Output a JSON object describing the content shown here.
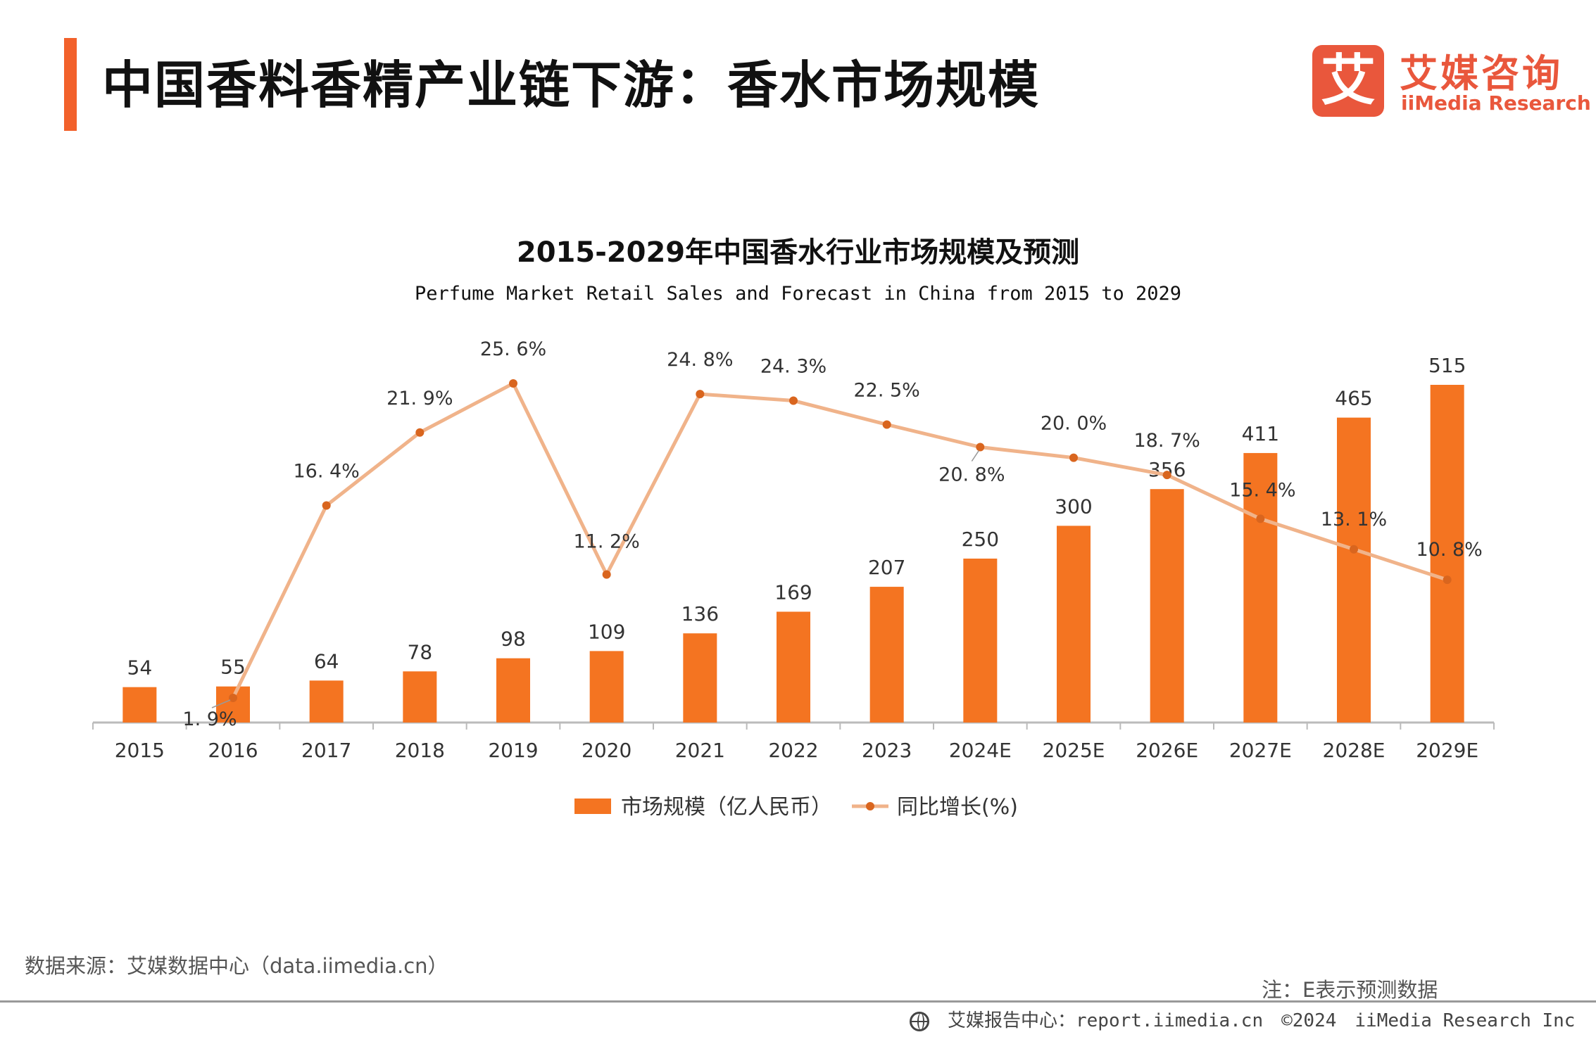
{
  "header": {
    "title": "中国香料香精产业链下游：香水市场规模",
    "logo_mark": "艾",
    "logo_cn": "艾媒咨询",
    "logo_en": "iiMedia Research"
  },
  "colors": {
    "accent": "#f2612b",
    "bar": "#f47421",
    "line": "#f0b38a",
    "point": "#d9651e"
  },
  "chart_data": {
    "type": "bar",
    "title": "2015-2029年中国香水行业市场规模及预测",
    "subtitle": "Perfume Market Retail Sales and Forecast in China from 2015 to 2029",
    "categories": [
      "2015",
      "2016",
      "2017",
      "2018",
      "2019",
      "2020",
      "2021",
      "2022",
      "2023",
      "2024E",
      "2025E",
      "2026E",
      "2027E",
      "2028E",
      "2029E"
    ],
    "series": [
      {
        "name": "市场规模（亿人民币）",
        "type": "bar",
        "values": [
          54,
          55,
          64,
          78,
          98,
          109,
          136,
          169,
          207,
          250,
          300,
          356,
          411,
          465,
          515
        ]
      },
      {
        "name": "同比增长(%)",
        "type": "line",
        "values": [
          null,
          1.9,
          16.4,
          21.9,
          25.6,
          11.2,
          24.8,
          24.3,
          22.5,
          20.8,
          20.0,
          18.7,
          15.4,
          13.1,
          10.8
        ],
        "labels": [
          "",
          "1. 9%",
          "16. 4%",
          "21. 9%",
          "25. 6%",
          "11. 2%",
          "24. 8%",
          "24. 3%",
          "22. 5%",
          "20. 8%",
          "20. 0%",
          "18. 7%",
          "15. 4%",
          "13. 1%",
          "10. 8%"
        ]
      }
    ],
    "legend": "bottom",
    "grid": false
  },
  "footer": {
    "source": "数据来源：艾媒数据中心（data.iimedia.cn）",
    "note": "注：E表示预测数据",
    "report": "艾媒报告中心：report.iimedia.cn",
    "copyright": "©2024",
    "company": "iiMedia Research  Inc"
  }
}
